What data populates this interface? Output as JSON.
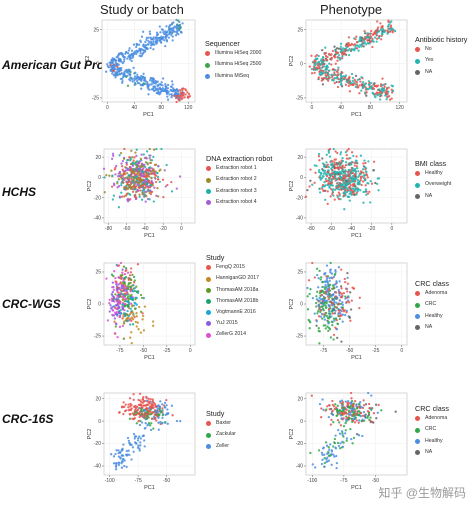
{
  "column_titles": [
    "Study or batch",
    "Phenotype"
  ],
  "watermark": "知乎 @生物解码",
  "chart_data": [
    {
      "type": "scatter",
      "row": "American Gut Project",
      "column": "Study or batch",
      "xlabel": "PC1",
      "ylabel": "PC2",
      "xlim": [
        -8,
        130
      ],
      "ylim": [
        -28,
        32
      ],
      "xticks": [
        0,
        40,
        80,
        120
      ],
      "yticks": [
        -25,
        0,
        25
      ],
      "legend_title": "Sequencer",
      "series": [
        {
          "name": "Illumina HiSeq 2000",
          "color": "#e8544e",
          "clusters": [
            {
              "start": [
                100,
                -24
              ],
              "end": [
                120,
                -20
              ],
              "n": 40,
              "spread": 3
            },
            {
              "start": [
                5,
                -6
              ],
              "end": [
                20,
                0
              ],
              "n": 8,
              "spread": 3
            }
          ]
        },
        {
          "name": "Illumina HiSeq 2500",
          "color": "#3aa74a",
          "clusters": [
            {
              "start": [
                95,
                22
              ],
              "end": [
                108,
                27
              ],
              "n": 8,
              "spread": 2
            },
            {
              "start": [
                20,
                -12
              ],
              "end": [
                60,
                -15
              ],
              "n": 6,
              "spread": 3
            }
          ]
        },
        {
          "name": "Illumina MiSeq",
          "color": "#4b8ee0",
          "clusters": [
            {
              "start": [
                3,
                -1
              ],
              "end": [
                110,
                28
              ],
              "n": 260,
              "spread": 2.8
            },
            {
              "start": [
                3,
                -4
              ],
              "end": [
                110,
                -23
              ],
              "n": 260,
              "spread": 2.8
            }
          ]
        }
      ]
    },
    {
      "type": "scatter",
      "row": "American Gut Project",
      "column": "Phenotype",
      "xlabel": "PC1",
      "ylabel": "PC2",
      "xlim": [
        -8,
        130
      ],
      "ylim": [
        -28,
        32
      ],
      "xticks": [
        0,
        40,
        80,
        120
      ],
      "yticks": [
        -25,
        0,
        25
      ],
      "legend_title": "Antibiotic history",
      "series": [
        {
          "name": "No",
          "color": "#e8544e",
          "clusters": [
            {
              "start": [
                3,
                -1
              ],
              "end": [
                110,
                28
              ],
              "n": 130,
              "spread": 2.8
            },
            {
              "start": [
                3,
                -4
              ],
              "end": [
                110,
                -23
              ],
              "n": 130,
              "spread": 2.8
            }
          ]
        },
        {
          "name": "Yes",
          "color": "#22b5b0",
          "clusters": [
            {
              "start": [
                3,
                -1
              ],
              "end": [
                110,
                28
              ],
              "n": 120,
              "spread": 2.8
            },
            {
              "start": [
                3,
                -4
              ],
              "end": [
                110,
                -23
              ],
              "n": 120,
              "spread": 2.8
            }
          ]
        },
        {
          "name": "NA",
          "color": "#666666",
          "clusters": [
            {
              "start": [
                10,
                2
              ],
              "end": [
                100,
                25
              ],
              "n": 25,
              "spread": 3
            },
            {
              "start": [
                10,
                -6
              ],
              "end": [
                100,
                -22
              ],
              "n": 25,
              "spread": 3
            }
          ]
        }
      ]
    },
    {
      "type": "scatter",
      "row": "HCHS",
      "column": "Study or batch",
      "xlabel": "PC1",
      "ylabel": "PC2",
      "xlim": [
        -85,
        15
      ],
      "ylim": [
        -45,
        28
      ],
      "xticks": [
        -80,
        -60,
        -40,
        -20,
        0
      ],
      "yticks": [
        -40,
        -20,
        0,
        20
      ],
      "legend_title": "DNA extraction robot",
      "series": [
        {
          "name": "Extraction robot 1",
          "color": "#e8544e",
          "clusters": [
            {
              "center": [
                -48,
                0
              ],
              "sx": 13,
              "sy": 11,
              "n": 130
            }
          ]
        },
        {
          "name": "Extraction robot 2",
          "color": "#9e8a26",
          "clusters": [
            {
              "center": [
                -48,
                0
              ],
              "sx": 13,
              "sy": 11,
              "n": 130
            }
          ]
        },
        {
          "name": "Extraction robot 3",
          "color": "#1bb0a8",
          "clusters": [
            {
              "center": [
                -48,
                0
              ],
              "sx": 13,
              "sy": 11,
              "n": 130
            }
          ]
        },
        {
          "name": "Extraction robot 4",
          "color": "#a55cd6",
          "clusters": [
            {
              "center": [
                -48,
                0
              ],
              "sx": 13,
              "sy": 11,
              "n": 130
            }
          ]
        }
      ]
    },
    {
      "type": "scatter",
      "row": "HCHS",
      "column": "Phenotype",
      "xlabel": "PC1",
      "ylabel": "PC2",
      "xlim": [
        -85,
        15
      ],
      "ylim": [
        -45,
        28
      ],
      "xticks": [
        -80,
        -60,
        -40,
        -20,
        0
      ],
      "yticks": [
        -40,
        -20,
        0,
        20
      ],
      "legend_title": "BMI class",
      "series": [
        {
          "name": "Healthy",
          "color": "#e8544e",
          "clusters": [
            {
              "center": [
                -48,
                0
              ],
              "sx": 13,
              "sy": 11,
              "n": 200
            }
          ]
        },
        {
          "name": "Overweight",
          "color": "#22b5b0",
          "clusters": [
            {
              "center": [
                -48,
                0
              ],
              "sx": 13,
              "sy": 11,
              "n": 300
            }
          ]
        },
        {
          "name": "NA",
          "color": "#666666",
          "clusters": [
            {
              "center": [
                -48,
                0
              ],
              "sx": 13,
              "sy": 11,
              "n": 40
            }
          ]
        }
      ]
    },
    {
      "type": "scatter",
      "row": "CRC-WGS",
      "column": "Study or batch",
      "xlabel": "PC1",
      "ylabel": "PC2",
      "xlim": [
        -92,
        5
      ],
      "ylim": [
        -32,
        32
      ],
      "xticks": [
        -75,
        -50,
        -25,
        0
      ],
      "yticks": [
        -25,
        0,
        25
      ],
      "legend_title": "Study",
      "series": [
        {
          "name": "FengQ 2015",
          "color": "#e8544e",
          "clusters": [
            {
              "center": [
                -70,
                10
              ],
              "sx": 6,
              "sy": 10,
              "n": 45
            }
          ]
        },
        {
          "name": "HanniganGD 2017",
          "color": "#c2891f",
          "clusters": [
            {
              "center": [
                -62,
                -12
              ],
              "sx": 10,
              "sy": 8,
              "n": 45
            }
          ]
        },
        {
          "name": "ThomasAM 2018a",
          "color": "#5d9a1f",
          "clusters": [
            {
              "center": [
                -68,
                8
              ],
              "sx": 6,
              "sy": 9,
              "n": 45
            }
          ]
        },
        {
          "name": "ThomasAM 2018b",
          "color": "#1ba46a",
          "clusters": [
            {
              "center": [
                -66,
                5
              ],
              "sx": 6,
              "sy": 9,
              "n": 40
            }
          ]
        },
        {
          "name": "VogtmannE 2016",
          "color": "#1ba6d6",
          "clusters": [
            {
              "center": [
                -66,
                0
              ],
              "sx": 7,
              "sy": 10,
              "n": 45
            }
          ]
        },
        {
          "name": "YuJ 2015",
          "color": "#8a5ce0",
          "clusters": [
            {
              "center": [
                -78,
                2
              ],
              "sx": 5,
              "sy": 10,
              "n": 60
            }
          ]
        },
        {
          "name": "ZellerG 2014",
          "color": "#e04fd0",
          "clusters": [
            {
              "center": [
                -75,
                5
              ],
              "sx": 6,
              "sy": 11,
              "n": 70
            }
          ]
        }
      ]
    },
    {
      "type": "scatter",
      "row": "CRC-WGS",
      "column": "Phenotype",
      "xlabel": "PC1",
      "ylabel": "PC2",
      "xlim": [
        -92,
        5
      ],
      "ylim": [
        -32,
        32
      ],
      "xticks": [
        -75,
        -50,
        -25,
        0
      ],
      "yticks": [
        -25,
        0,
        25
      ],
      "legend_title": "CRC class",
      "series": [
        {
          "name": "Adenoma",
          "color": "#e8544e",
          "clusters": [
            {
              "center": [
                -65,
                5
              ],
              "sx": 10,
              "sy": 12,
              "n": 80
            }
          ]
        },
        {
          "name": "CRC",
          "color": "#2fa84a",
          "clusters": [
            {
              "center": [
                -72,
                0
              ],
              "sx": 8,
              "sy": 12,
              "n": 120
            }
          ]
        },
        {
          "name": "Healthy",
          "color": "#4b8ee0",
          "clusters": [
            {
              "center": [
                -68,
                5
              ],
              "sx": 9,
              "sy": 11,
              "n": 130
            }
          ]
        },
        {
          "name": "NA",
          "color": "#666666",
          "clusters": [
            {
              "center": [
                -60,
                0
              ],
              "sx": 10,
              "sy": 10,
              "n": 20
            }
          ]
        }
      ]
    },
    {
      "type": "scatter",
      "row": "CRC-16S",
      "column": "Study or batch",
      "xlabel": "PC1",
      "ylabel": "PC2",
      "xlim": [
        -105,
        -25
      ],
      "ylim": [
        -48,
        25
      ],
      "xticks": [
        -100,
        -75,
        -50
      ],
      "yticks": [
        -40,
        -20,
        0,
        20
      ],
      "legend_title": "Study",
      "series": [
        {
          "name": "Baxter",
          "color": "#e8544e",
          "clusters": [
            {
              "center": [
                -72,
                12
              ],
              "sx": 9,
              "sy": 5,
              "n": 150
            }
          ]
        },
        {
          "name": "Zackular",
          "color": "#2fa84a",
          "clusters": [
            {
              "center": [
                -68,
                5
              ],
              "sx": 8,
              "sy": 5,
              "n": 50
            }
          ]
        },
        {
          "name": "Zeller",
          "color": "#4b8ee0",
          "clusters": [
            {
              "start": [
                -95,
                -40
              ],
              "end": [
                -72,
                -10
              ],
              "n": 80,
              "spread": 4
            },
            {
              "center": [
                -60,
                8
              ],
              "sx": 8,
              "sy": 6,
              "n": 60
            }
          ]
        }
      ]
    },
    {
      "type": "scatter",
      "row": "CRC-16S",
      "column": "Phenotype",
      "xlabel": "PC1",
      "ylabel": "PC2",
      "xlim": [
        -105,
        -25
      ],
      "ylim": [
        -48,
        25
      ],
      "xticks": [
        -100,
        -75,
        -50
      ],
      "yticks": [
        -40,
        -20,
        0,
        20
      ],
      "legend_title": "CRC class",
      "series": [
        {
          "name": "Adenoma",
          "color": "#e8544e",
          "clusters": [
            {
              "center": [
                -70,
                10
              ],
              "sx": 9,
              "sy": 6,
              "n": 90
            }
          ]
        },
        {
          "name": "CRC",
          "color": "#2fa84a",
          "clusters": [
            {
              "center": [
                -68,
                8
              ],
              "sx": 9,
              "sy": 6,
              "n": 70
            },
            {
              "start": [
                -95,
                -40
              ],
              "end": [
                -72,
                -12
              ],
              "n": 25,
              "spread": 4
            }
          ]
        },
        {
          "name": "Healthy",
          "color": "#4b8ee0",
          "clusters": [
            {
              "center": [
                -70,
                10
              ],
              "sx": 9,
              "sy": 6,
              "n": 60
            },
            {
              "start": [
                -95,
                -40
              ],
              "end": [
                -72,
                -12
              ],
              "n": 45,
              "spread": 4
            }
          ]
        },
        {
          "name": "NA",
          "color": "#666666",
          "clusters": [
            {
              "center": [
                -66,
                6
              ],
              "sx": 9,
              "sy": 7,
              "n": 20
            }
          ]
        }
      ]
    }
  ]
}
